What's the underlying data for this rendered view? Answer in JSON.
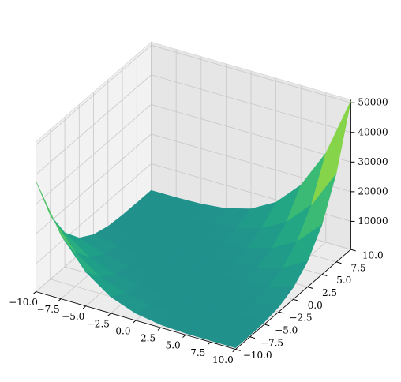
{
  "chart_data": {
    "type": "surface",
    "x": [
      -10,
      -7.5,
      -5,
      -2.5,
      0,
      2.5,
      5,
      7.5,
      10
    ],
    "y": [
      -10,
      -7.5,
      -5,
      -2.5,
      0,
      2.5,
      5,
      7.5,
      10
    ],
    "z": [
      [
        37800,
        22036,
        11969,
        6030,
        2900,
        1517,
        1069,
        998,
        1000
      ],
      [
        22036,
        11969,
        6030,
        2900,
        1517,
        1069,
        998,
        1000,
        1023
      ],
      [
        11969,
        6030,
        2900,
        1517,
        1069,
        998,
        1000,
        1023,
        1269
      ],
      [
        6030,
        2900,
        1517,
        1069,
        998,
        1000,
        1023,
        1269,
        2192
      ],
      [
        2900,
        1517,
        1069,
        998,
        1000,
        1023,
        1269,
        2192,
        4500
      ],
      [
        1517,
        1069,
        998,
        1000,
        1023,
        1269,
        2192,
        4500,
        9155
      ],
      [
        1069,
        998,
        1000,
        1023,
        1269,
        2192,
        4500,
        9155,
        17369
      ],
      [
        998,
        1000,
        1023,
        1269,
        2192,
        4500,
        9155,
        17369,
        30611
      ],
      [
        1000,
        1023,
        1269,
        2192,
        4500,
        9155,
        17369,
        30611,
        50600
      ]
    ],
    "cmap": "viridis",
    "xlim": [
      -10,
      10
    ],
    "ylim": [
      -10,
      10
    ],
    "zlim": [
      500,
      51000
    ],
    "xticks": [
      {
        "value": -10,
        "label": "−10.0"
      },
      {
        "value": -7.5,
        "label": "−7.5"
      },
      {
        "value": -5,
        "label": "−5.0"
      },
      {
        "value": -2.5,
        "label": "−2.5"
      },
      {
        "value": 0,
        "label": "0.0"
      },
      {
        "value": 2.5,
        "label": "2.5"
      },
      {
        "value": 5,
        "label": "5.0"
      },
      {
        "value": 7.5,
        "label": "7.5"
      },
      {
        "value": 10,
        "label": "10.0"
      }
    ],
    "yticks": [
      {
        "value": -10,
        "label": "−10.0"
      },
      {
        "value": -7.5,
        "label": "−7.5"
      },
      {
        "value": -5,
        "label": "−5.0"
      },
      {
        "value": -2.5,
        "label": "−2.5"
      },
      {
        "value": 0,
        "label": "0.0"
      },
      {
        "value": 2.5,
        "label": "2.5"
      },
      {
        "value": 5,
        "label": "5.0"
      },
      {
        "value": 7.5,
        "label": "7.5"
      },
      {
        "value": 10,
        "label": "10.0"
      }
    ],
    "zticks": [
      10000,
      20000,
      30000,
      40000,
      50000
    ],
    "grid": true
  }
}
